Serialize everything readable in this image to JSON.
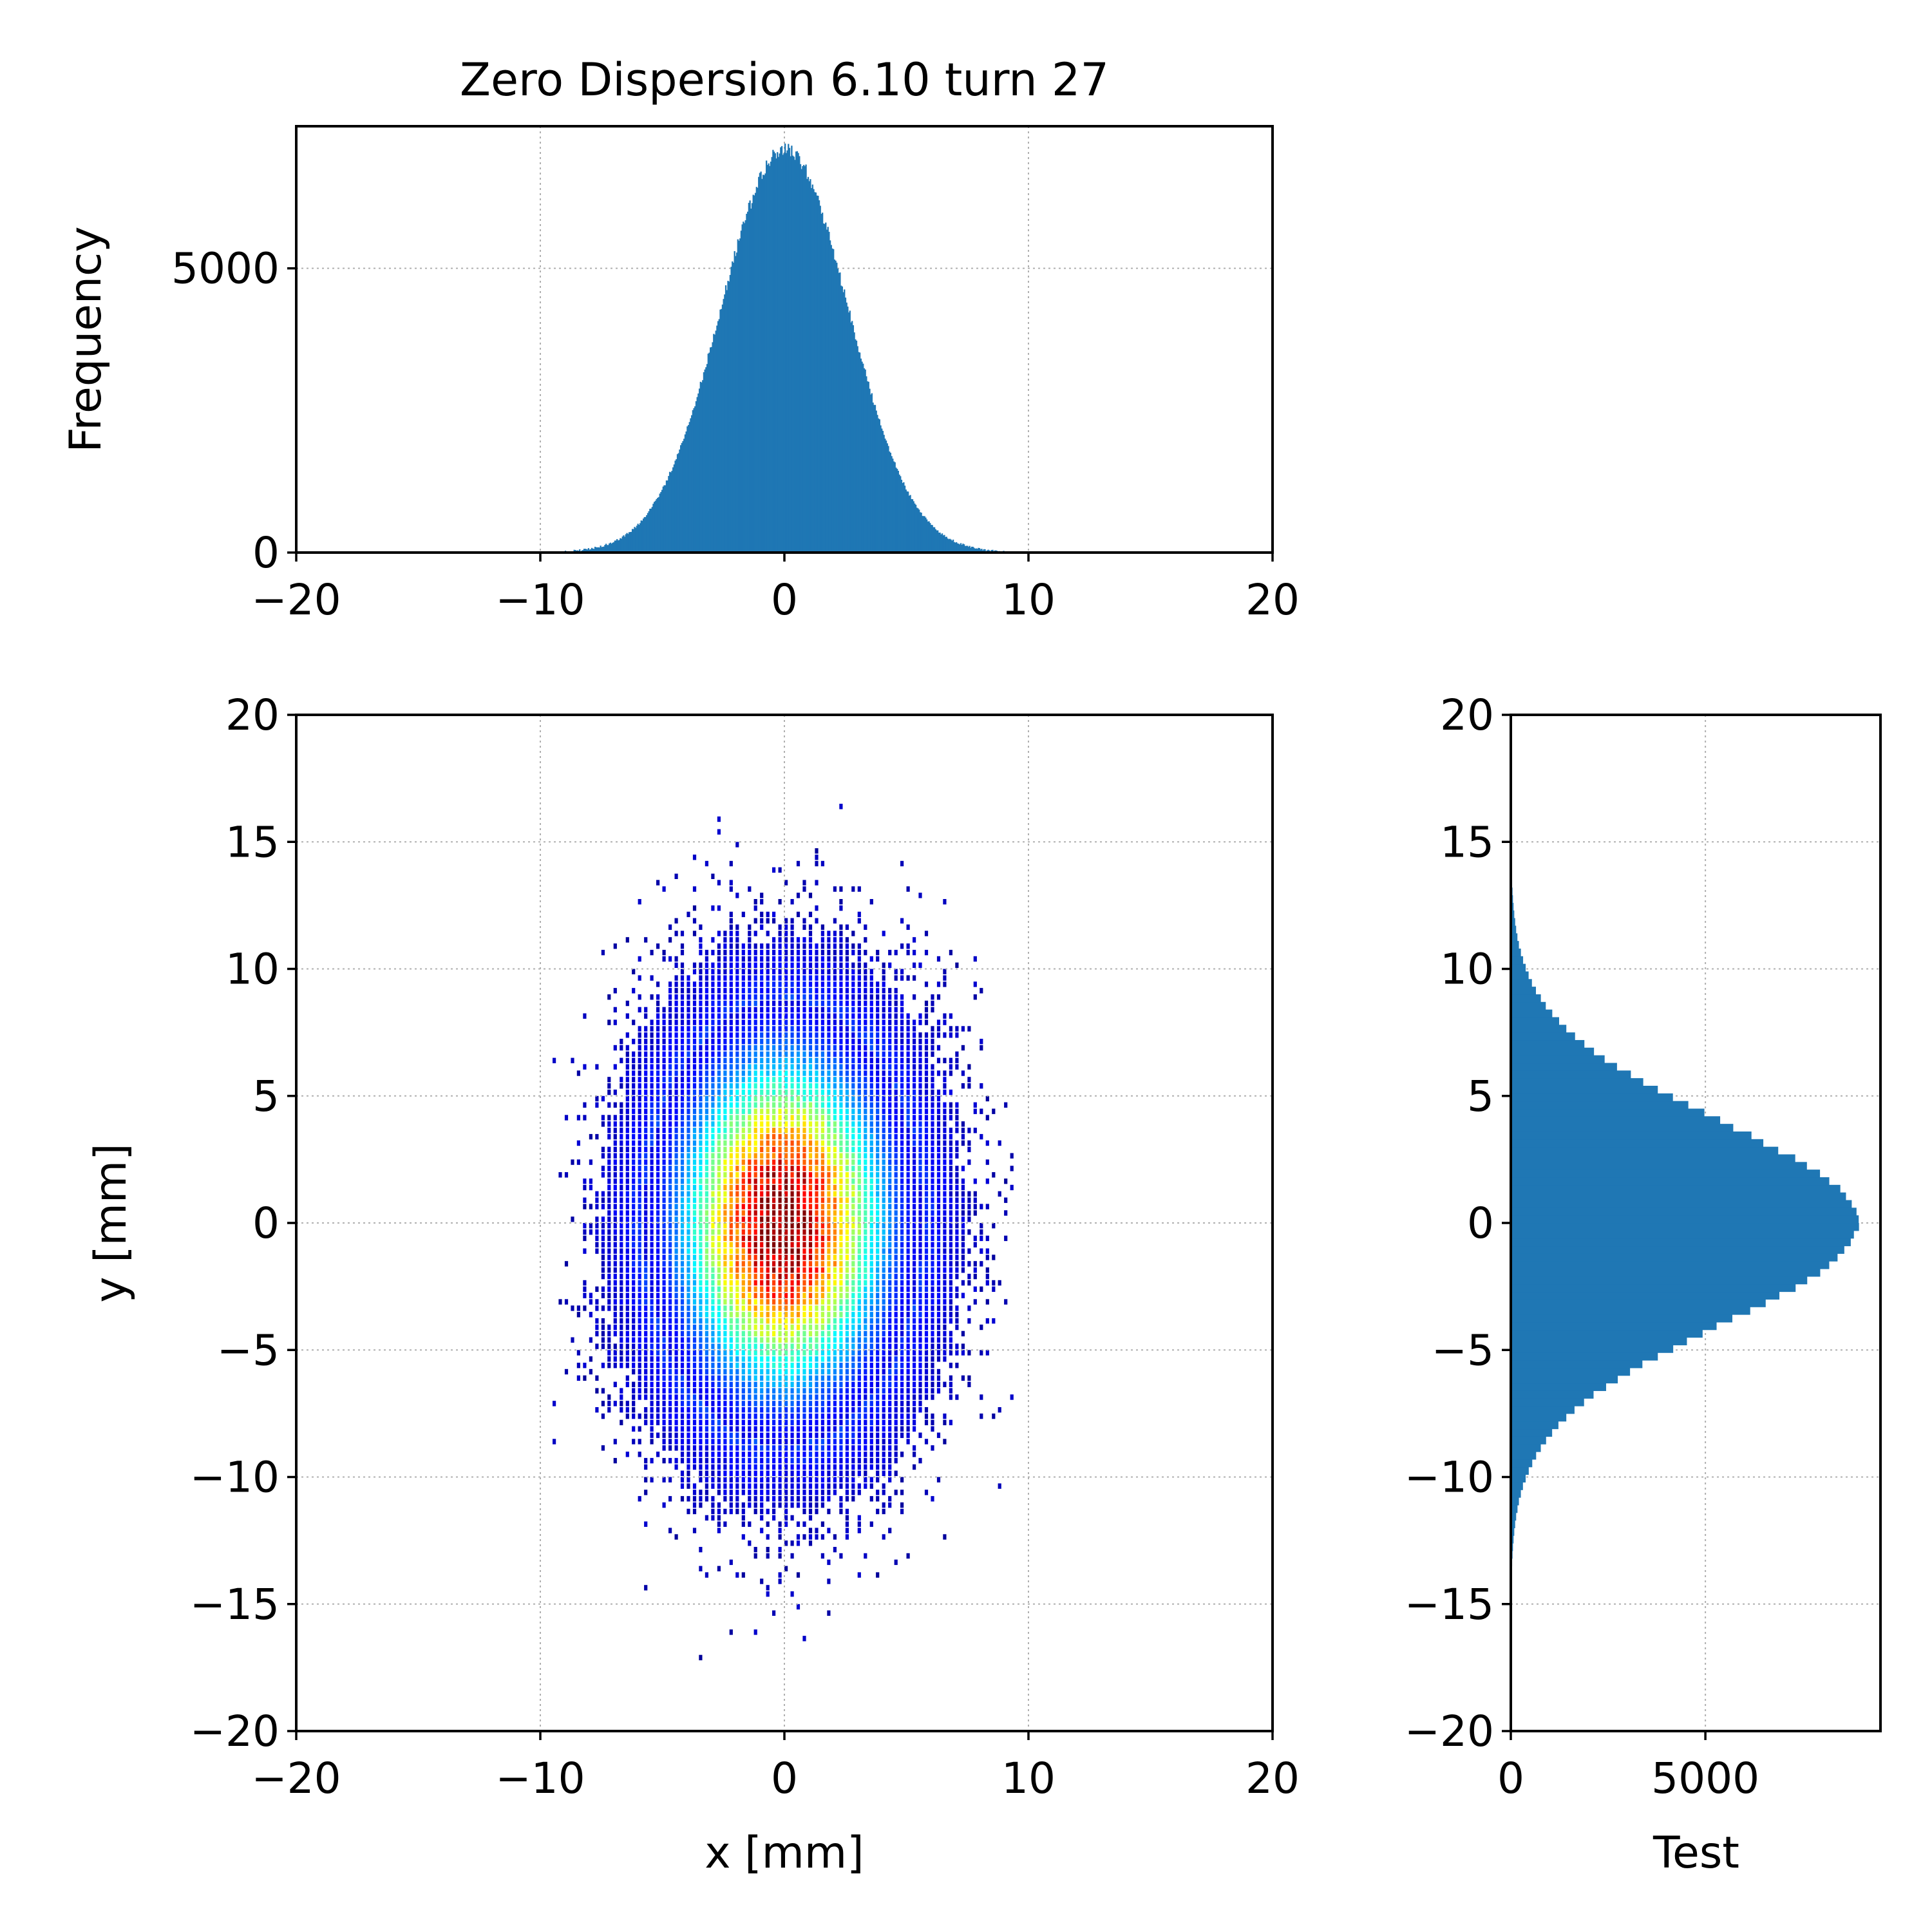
{
  "chart_data": [
    {
      "id": "top",
      "type": "histogram",
      "title": "Zero Dispersion 6.10 turn 27",
      "xlabel": "",
      "ylabel": "Frequency",
      "xlim": [
        -20,
        20
      ],
      "ylim": [
        0,
        7500
      ],
      "xticks": [
        -20,
        -10,
        0,
        10,
        20
      ],
      "yticks": [
        0,
        5000
      ],
      "grid": true,
      "bar_color": "#1f77b4",
      "distribution": {
        "center": 0,
        "sigma": 2.6,
        "peak": 7100,
        "support": [
          -9,
          9
        ],
        "bins": 400
      }
    },
    {
      "id": "main",
      "type": "heatmap",
      "title": "",
      "xlabel": "x [mm]",
      "ylabel": "y [mm]",
      "xlim": [
        -20,
        20
      ],
      "ylim": [
        -20,
        20
      ],
      "xticks": [
        -20,
        -10,
        0,
        10,
        20
      ],
      "yticks": [
        -20,
        -15,
        -10,
        -5,
        0,
        5,
        10,
        15,
        20
      ],
      "grid": true,
      "colormap": "jet",
      "distribution": {
        "center": [
          0,
          0
        ],
        "sigma_x": 2.6,
        "sigma_y": 4.0,
        "extent_x": [
          -9.5,
          9.5
        ],
        "extent_y": [
          -19,
          19
        ]
      }
    },
    {
      "id": "right",
      "type": "histogram",
      "orientation": "horizontal",
      "title": "",
      "xlabel": "Test",
      "ylabel": "",
      "xlim": [
        0,
        9500
      ],
      "ylim": [
        -20,
        20
      ],
      "xticks": [
        0,
        5000
      ],
      "yticks": [
        -20,
        -15,
        -10,
        -5,
        0,
        5,
        10,
        15,
        20
      ],
      "grid": true,
      "bar_color": "#1f77b4",
      "distribution": {
        "center": 0,
        "sigma": 4.0,
        "peak": 8900,
        "support": [
          -15,
          15
        ],
        "bins": 100
      }
    }
  ]
}
